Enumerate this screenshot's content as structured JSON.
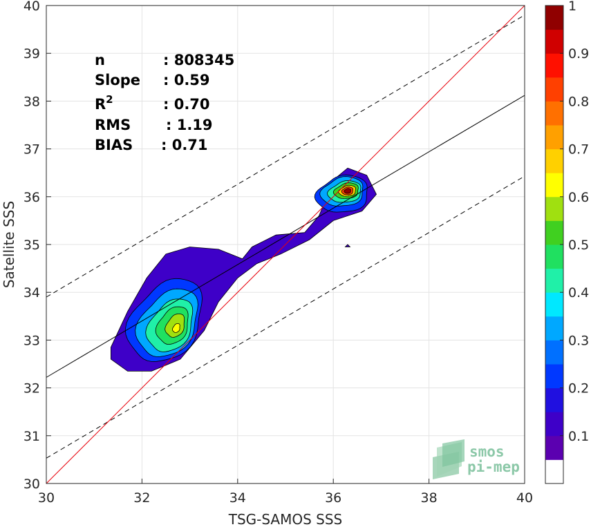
{
  "chart_data": {
    "type": "contour",
    "xlabel": "TSG-SAMOS SSS",
    "ylabel": "Satellite SSS",
    "xlim": [
      30,
      40
    ],
    "ylim": [
      30,
      40
    ],
    "xticks": [
      "30",
      "32",
      "34",
      "36",
      "38",
      "40"
    ],
    "yticks": [
      "30",
      "31",
      "32",
      "33",
      "34",
      "35",
      "36",
      "37",
      "38",
      "39",
      "40"
    ],
    "grid": true,
    "stats": [
      {
        "label": "n",
        "value": ": 808345"
      },
      {
        "label": "Slope",
        "value": ": 0.59"
      },
      {
        "label": "R",
        "sup": "2",
        "value": ": 0.70"
      },
      {
        "label": "RMS",
        "value": ": 1.19"
      },
      {
        "label": "BIAS",
        "value": ": 0.71"
      }
    ],
    "identity_line": {
      "color": "#e8000b",
      "points": [
        [
          30,
          30
        ],
        [
          40,
          40
        ]
      ]
    },
    "regression_line": {
      "color": "#000000",
      "points": [
        [
          30,
          32.22
        ],
        [
          40,
          38.12
        ]
      ]
    },
    "regression_band_upper": {
      "style": "dashed",
      "points": [
        [
          30,
          33.9
        ],
        [
          40,
          39.8
        ]
      ]
    },
    "regression_band_lower": {
      "style": "dashed",
      "points": [
        [
          30,
          30.53
        ],
        [
          40,
          36.43
        ]
      ]
    },
    "density_peaks": [
      {
        "x": 36.3,
        "y": 36.1,
        "normalized_density": 1.0
      },
      {
        "x": 32.7,
        "y": 33.25,
        "normalized_density": 0.62
      }
    ],
    "colorbar": {
      "range": [
        0,
        1
      ],
      "ticks": [
        "0.1",
        "0.2",
        "0.3",
        "0.4",
        "0.5",
        "0.6",
        "0.7",
        "0.8",
        "0.9",
        "1"
      ],
      "colors": [
        "#ffffff",
        "#5b00b0",
        "#3e00c8",
        "#2010e0",
        "#0038ff",
        "#0070ff",
        "#00a8ff",
        "#00e8ff",
        "#20f0a8",
        "#20e060",
        "#40d020",
        "#a0e010",
        "#ffff00",
        "#ffd000",
        "#ffa000",
        "#ff7000",
        "#ff4000",
        "#ff1000",
        "#d00000",
        "#900000"
      ]
    }
  },
  "watermark": {
    "line1": "smos",
    "line2": "pi-mep"
  }
}
